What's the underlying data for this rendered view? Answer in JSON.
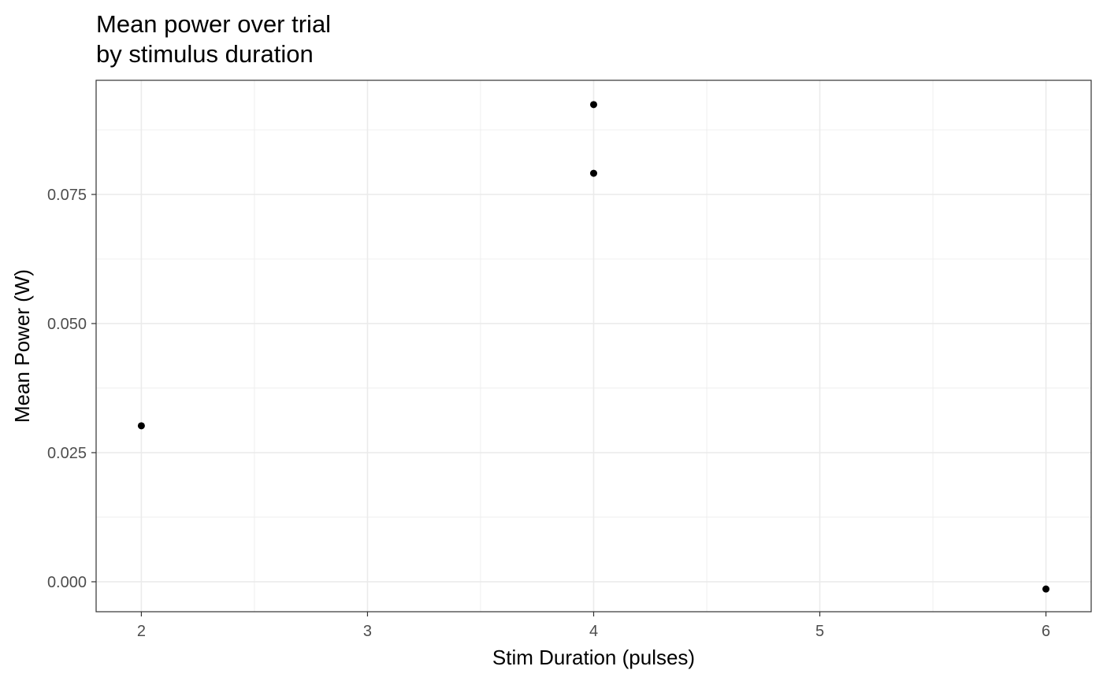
{
  "chart_data": {
    "type": "scatter",
    "title": [
      "Mean power over trial",
      "by stimulus duration"
    ],
    "xlabel": "Stim Duration (pulses)",
    "ylabel": "Mean Power (W)",
    "xlim": [
      1.8,
      6.2
    ],
    "ylim": [
      -0.0058,
      0.0971
    ],
    "x_ticks": [
      2,
      3,
      4,
      5,
      6
    ],
    "x_tick_labels": [
      "2",
      "3",
      "4",
      "5",
      "6"
    ],
    "y_ticks": [
      0.0,
      0.025,
      0.05,
      0.075
    ],
    "y_tick_labels": [
      "0.000",
      "0.025",
      "0.050",
      "0.075"
    ],
    "grid": true,
    "legend": "none",
    "point_color": "#000000",
    "points": [
      {
        "x": 2,
        "y": 0.0302
      },
      {
        "x": 4,
        "y": 0.0924
      },
      {
        "x": 4,
        "y": 0.0791
      },
      {
        "x": 6,
        "y": -0.0014
      }
    ]
  }
}
